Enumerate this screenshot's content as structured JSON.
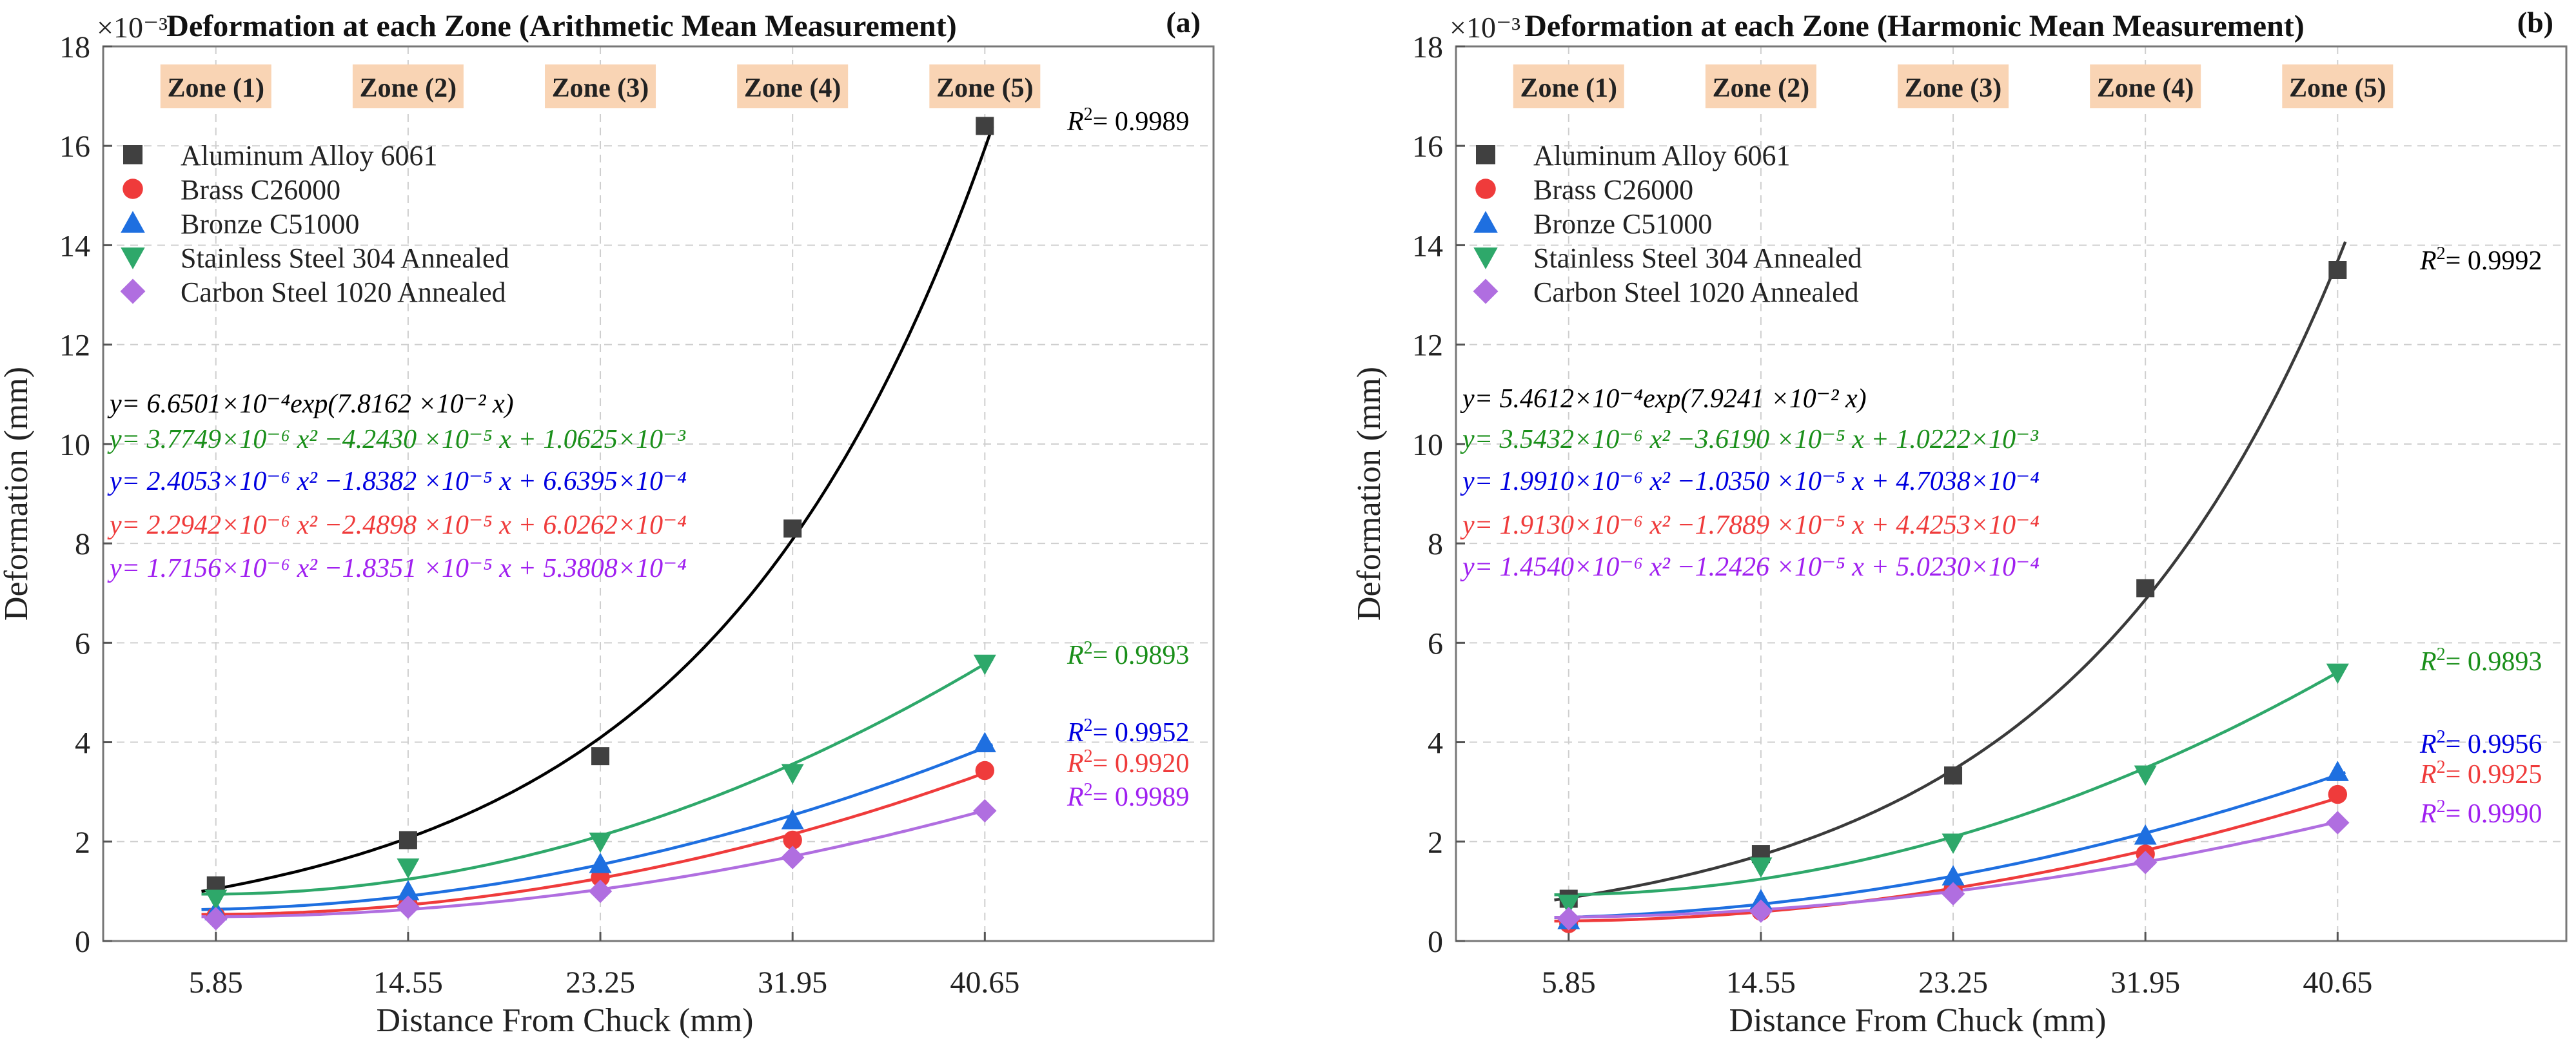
{
  "chart_data": [
    {
      "type": "scatter",
      "title": "Deformation at each Zone (Arithmetic Mean Measurement)",
      "panel_label": "(a)",
      "xlabel": "Distance From Chuck (mm)",
      "ylabel": "Deformation (mm)",
      "y_multiplier": "×10⁻³",
      "x_ticks": [
        "5.85",
        "14.55",
        "23.25",
        "31.95",
        "40.65"
      ],
      "y_ticks": [
        "0",
        "2",
        "4",
        "6",
        "8",
        "10",
        "12",
        "14",
        "16",
        "18"
      ],
      "xlim": [
        0.75,
        51.0
      ],
      "ylim": [
        0,
        18
      ],
      "grid": true,
      "legend_position": "top-left",
      "zones": [
        "Zone (1)",
        "Zone (2)",
        "Zone (3)",
        "Zone (4)",
        "Zone (5)"
      ],
      "x": [
        5.85,
        14.55,
        23.25,
        31.95,
        40.65
      ],
      "series": [
        {
          "name": "Aluminum Alloy 6061",
          "marker": "square",
          "color": "#404040",
          "fit_color": "#000000",
          "values": [
            1.12,
            2.03,
            3.72,
            8.3,
            16.4
          ],
          "fit": {
            "kind": "exp",
            "a": 0.66501,
            "b": 0.078162
          },
          "equation": "y= 6.6501×10⁻⁴exp(7.8162 ×10⁻² x)",
          "eq_color": "#000000",
          "r2": "= 0.9989",
          "r2_color": "#000000"
        },
        {
          "name": "Brass C26000",
          "marker": "circle",
          "color": "#ef3b3b",
          "fit_color": "#ef3b3b",
          "values": [
            0.5,
            0.75,
            1.28,
            2.03,
            3.43
          ],
          "fit": {
            "kind": "quad",
            "a": 0.0022942,
            "b": -0.024898,
            "c": 0.60262
          },
          "equation": "y= 2.2942×10⁻⁶ x² −2.4898 ×10⁻⁵ x + 6.0262×10⁻⁴",
          "eq_color": "#ef3b3b",
          "r2": "= 0.9920",
          "r2_color": "#ef3b3b"
        },
        {
          "name": "Bronze C51000",
          "marker": "triangle-up",
          "color": "#1e6fe0",
          "fit_color": "#1e6fe0",
          "values": [
            0.6,
            1.0,
            1.55,
            2.43,
            3.98
          ],
          "fit": {
            "kind": "quad",
            "a": 0.0024053,
            "b": -0.018382,
            "c": 0.66395
          },
          "equation": "y= 2.4053×10⁻⁶ x² −1.8382 ×10⁻⁵ x + 6.6395×10⁻⁴",
          "eq_color": "#0000e0",
          "r2": "= 0.9952",
          "r2_color": "#0000e0"
        },
        {
          "name": "Stainless Steel 304 Annealed",
          "marker": "triangle-down",
          "color": "#2ea86a",
          "fit_color": "#2ea86a",
          "values": [
            0.85,
            1.48,
            2.0,
            3.38,
            5.58
          ],
          "fit": {
            "kind": "quad",
            "a": 0.0037749,
            "b": -0.04243,
            "c": 1.0625
          },
          "equation": "y= 3.7749×10⁻⁶ x² −4.2430 ×10⁻⁵ x + 1.0625×10⁻³",
          "eq_color": "#1a8f1a",
          "r2": "= 0.9893",
          "r2_color": "#1a8f1a"
        },
        {
          "name": "Carbon Steel 1020 Annealed",
          "marker": "diamond",
          "color": "#b06ee0",
          "fit_color": "#b06ee0",
          "values": [
            0.45,
            0.68,
            1.0,
            1.68,
            2.62
          ],
          "fit": {
            "kind": "quad",
            "a": 0.0017156,
            "b": -0.018351,
            "c": 0.53808
          },
          "equation": "y= 1.7156×10⁻⁶ x² −1.8351 ×10⁻⁵ x + 5.3808×10⁻⁴",
          "eq_color": "#a020f0",
          "r2": "= 0.9989",
          "r2_color": "#a020f0"
        }
      ]
    },
    {
      "type": "scatter",
      "title": "Deformation at each Zone (Harmonic Mean Measurement)",
      "panel_label": "(b)",
      "xlabel": "Distance From Chuck (mm)",
      "ylabel": "Deformation (mm)",
      "y_multiplier": "×10⁻³",
      "x_ticks": [
        "5.85",
        "14.55",
        "23.25",
        "31.95",
        "40.65"
      ],
      "y_ticks": [
        "0",
        "2",
        "4",
        "6",
        "8",
        "10",
        "12",
        "14",
        "16",
        "18"
      ],
      "xlim": [
        0.75,
        51.0
      ],
      "ylim": [
        0,
        18
      ],
      "grid": true,
      "legend_position": "top-left",
      "zones": [
        "Zone (1)",
        "Zone (2)",
        "Zone (3)",
        "Zone (4)",
        "Zone (5)"
      ],
      "x": [
        5.85,
        14.55,
        23.25,
        31.95,
        40.65
      ],
      "series": [
        {
          "name": "Aluminum Alloy 6061",
          "marker": "square",
          "color": "#404040",
          "fit_color": "#3a3a3a",
          "values": [
            0.85,
            1.75,
            3.33,
            7.1,
            13.5
          ],
          "fit": {
            "kind": "exp",
            "a": 0.54612,
            "b": 0.079241
          },
          "equation": "y= 5.4612×10⁻⁴exp(7.9241 ×10⁻² x)",
          "eq_color": "#000000",
          "r2": "= 0.9992",
          "r2_color": "#000000"
        },
        {
          "name": "Brass C26000",
          "marker": "circle",
          "color": "#ef3b3b",
          "fit_color": "#ef3b3b",
          "values": [
            0.35,
            0.6,
            1.05,
            1.75,
            2.95
          ],
          "fit": {
            "kind": "quad",
            "a": 0.001913,
            "b": -0.017889,
            "c": 0.44253
          },
          "equation": "y= 1.9130×10⁻⁶ x² −1.7889 ×10⁻⁵ x + 4.4253×10⁻⁴",
          "eq_color": "#ef3b3b",
          "r2": "= 0.9925",
          "r2_color": "#ef3b3b"
        },
        {
          "name": "Bronze C51000",
          "marker": "triangle-up",
          "color": "#1e6fe0",
          "fit_color": "#1e6fe0",
          "values": [
            0.42,
            0.82,
            1.3,
            2.12,
            3.4
          ],
          "fit": {
            "kind": "quad",
            "a": 0.001991,
            "b": -0.01035,
            "c": 0.47038
          },
          "equation": "y= 1.9910×10⁻⁶ x² −1.0350 ×10⁻⁵ x + 4.7038×10⁻⁴",
          "eq_color": "#0000e0",
          "r2": "= 0.9956",
          "r2_color": "#0000e0"
        },
        {
          "name": "Stainless Steel 304 Annealed",
          "marker": "triangle-down",
          "color": "#2ea86a",
          "fit_color": "#2ea86a",
          "values": [
            0.75,
            1.5,
            1.98,
            3.35,
            5.4
          ],
          "fit": {
            "kind": "quad",
            "a": 0.0035432,
            "b": -0.03619,
            "c": 1.0222
          },
          "equation": "y= 3.5432×10⁻⁶ x² −3.6190 ×10⁻⁵ x + 1.0222×10⁻³",
          "eq_color": "#1a8f1a",
          "r2": "= 0.9893",
          "r2_color": "#1a8f1a"
        },
        {
          "name": "Carbon Steel 1020 Annealed",
          "marker": "diamond",
          "color": "#b06ee0",
          "fit_color": "#b06ee0",
          "values": [
            0.45,
            0.6,
            0.95,
            1.58,
            2.38
          ],
          "fit": {
            "kind": "quad",
            "a": 0.001454,
            "b": -0.012426,
            "c": 0.5023
          },
          "equation": "y= 1.4540×10⁻⁶ x² −1.2426 ×10⁻⁵ x + 5.0230×10⁻⁴",
          "eq_color": "#a020f0",
          "r2": "= 0.9990",
          "r2_color": "#a020f0"
        }
      ]
    }
  ]
}
